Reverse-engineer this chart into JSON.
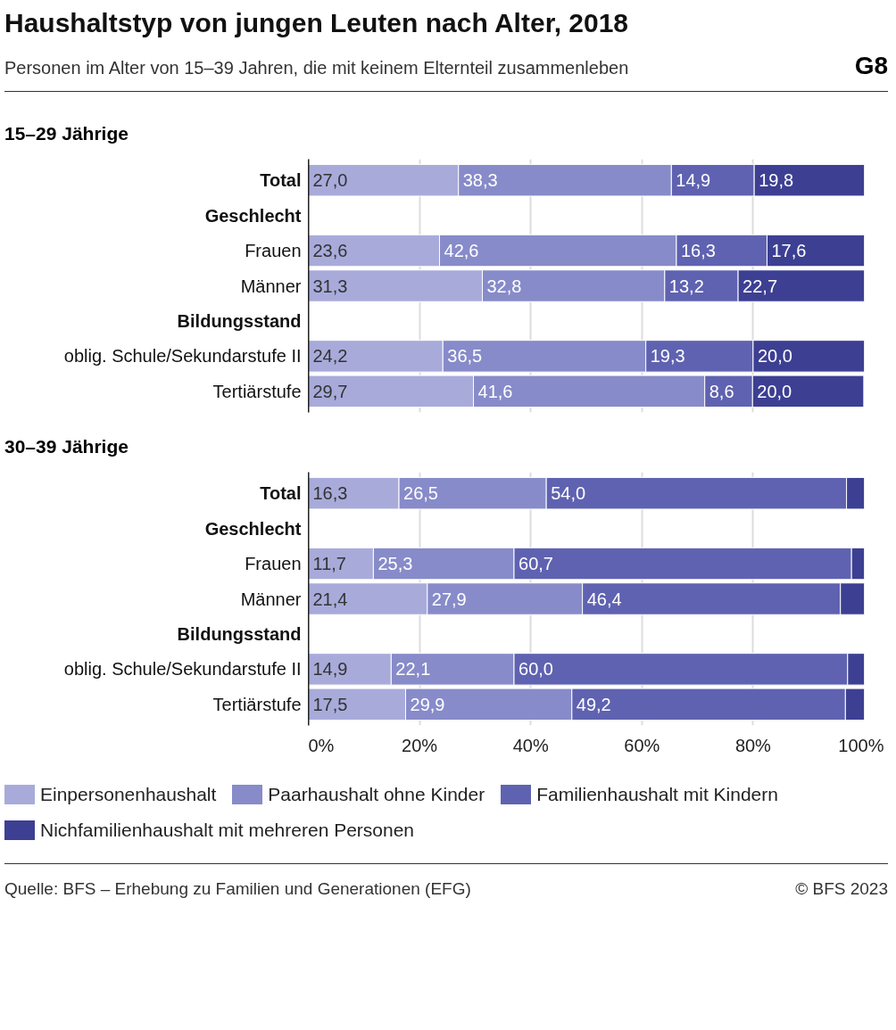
{
  "chart_data": [
    {
      "type": "bar",
      "orientation": "horizontal",
      "stacked": true,
      "title": "Haushaltstyp von jungen Leuten nach Alter, 2018",
      "subtitle": "Personen im Alter von 15–39 Jahren, die mit keinem Elternteil zusammenleben",
      "annotations": [
        "G8",
        "15–29 Jährige"
      ],
      "categories": [
        "Total",
        "Geschlecht",
        "Frauen",
        "Männer",
        "Bildungsstand",
        "oblig. Schule/Sekundarstufe II",
        "Tertiärstufe"
      ],
      "series": [
        {
          "color": "#a8abda",
          "values": [
            27.0,
            null,
            23.6,
            31.3,
            null,
            24.2,
            29.7
          ],
          "value_labels": [
            "27,0",
            null,
            "23,6",
            "31,3",
            null,
            "24,2",
            "29,7"
          ]
        },
        {
          "color": "#878bc9",
          "values": [
            38.3,
            null,
            42.6,
            32.8,
            null,
            36.5,
            41.6
          ],
          "value_labels": [
            "38,3",
            null,
            "42,6",
            "32,8",
            null,
            "36,5",
            "41,6"
          ]
        },
        {
          "color": "#5f62b0",
          "values": [
            14.9,
            null,
            16.3,
            13.2,
            null,
            19.3,
            8.6
          ],
          "value_labels": [
            "14,9",
            null,
            "16,3",
            "13,2",
            null,
            "19,3",
            "8,6"
          ]
        },
        {
          "color": "#3d3f93",
          "values": [
            19.8,
            null,
            17.6,
            22.7,
            null,
            20.0,
            20.0
          ],
          "value_labels": [
            "19,8",
            null,
            "17,6",
            "22,7",
            null,
            "20,0",
            "20,0"
          ]
        }
      ],
      "xlim": [
        0,
        100
      ],
      "xticks": [
        {
          "value": 0,
          "label": null
        },
        {
          "value": 20,
          "label": null
        },
        {
          "value": 40,
          "label": null
        },
        {
          "value": 60,
          "label": null
        },
        {
          "value": 80,
          "label": null
        },
        {
          "value": 100,
          "label": null
        }
      ],
      "grid": "x",
      "tick_labels": "y"
    },
    {
      "type": "bar",
      "orientation": "horizontal",
      "stacked": true,
      "title": "30–39 Jährige",
      "annotations": [
        "Quelle: BFS – Erhebung zu Familien und Generationen (EFG)",
        "© BFS 2023"
      ],
      "categories": [
        "Total",
        "Geschlecht",
        "Frauen",
        "Männer",
        "Bildungsstand",
        "oblig. Schule/Sekundarstufe II",
        "Tertiärstufe"
      ],
      "series": [
        {
          "name": "Einpersonenhaushalt",
          "color": "#a8abda",
          "values": [
            16.3,
            null,
            11.7,
            21.4,
            null,
            14.9,
            17.5
          ],
          "value_labels": [
            "16,3",
            null,
            "11,7",
            "21,4",
            null,
            "14,9",
            "17,5"
          ]
        },
        {
          "name": "Paarhaushalt ohne Kinder",
          "color": "#878bc9",
          "values": [
            26.5,
            null,
            25.3,
            27.9,
            null,
            22.1,
            29.9
          ],
          "value_labels": [
            "26,5",
            null,
            "25,3",
            "27,9",
            null,
            "22,1",
            "29,9"
          ]
        },
        {
          "name": "Familienhaushalt mit Kindern",
          "color": "#5f62b0",
          "values": [
            54.0,
            null,
            60.7,
            46.4,
            null,
            60.0,
            49.2
          ],
          "value_labels": [
            "54,0",
            null,
            "60,7",
            "46,4",
            null,
            "60,0",
            "49,2"
          ]
        },
        {
          "name": "Nichfamilienhaushalt mit mehreren Personen",
          "color": "#3d3f93",
          "values": [
            3.2,
            null,
            2.3,
            4.3,
            null,
            3.0,
            3.4
          ],
          "value_labels": [
            null,
            null,
            null,
            null,
            null,
            null,
            null
          ]
        }
      ],
      "xlim": [
        0,
        100
      ],
      "xticks": [
        {
          "value": 0,
          "label": "0%"
        },
        {
          "value": 20,
          "label": "20%"
        },
        {
          "value": 40,
          "label": "40%"
        },
        {
          "value": 60,
          "label": "60%"
        },
        {
          "value": 80,
          "label": "80%"
        },
        {
          "value": 100,
          "label": "100%"
        }
      ],
      "grid": "x",
      "legend": "bottom"
    }
  ]
}
